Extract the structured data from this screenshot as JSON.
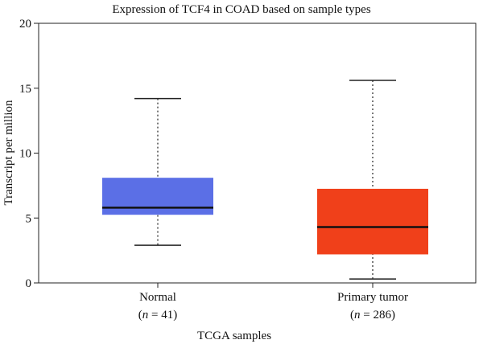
{
  "chart_data": {
    "type": "box",
    "title": "Expression of TCF4 in COAD based on sample types",
    "xlabel": "TCGA samples",
    "ylabel": "Transcript per million",
    "ylim": [
      0,
      20
    ],
    "yticks": [
      0,
      5,
      10,
      15,
      20
    ],
    "grid": false,
    "legend": "none",
    "groups": [
      {
        "label": "Normal",
        "n_prefix": "(",
        "n_italic": "n",
        "n_suffix": " = 41)",
        "min": 2.9,
        "q1": 5.25,
        "median": 5.8,
        "q3": 8.1,
        "max": 14.2,
        "color": "#5b6fe6"
      },
      {
        "label": "Primary tumor",
        "n_prefix": "(",
        "n_italic": "n",
        "n_suffix": " = 286)",
        "min": 0.3,
        "q1": 2.2,
        "median": 4.3,
        "q3": 7.25,
        "max": 15.6,
        "color": "#f0401a"
      }
    ]
  }
}
